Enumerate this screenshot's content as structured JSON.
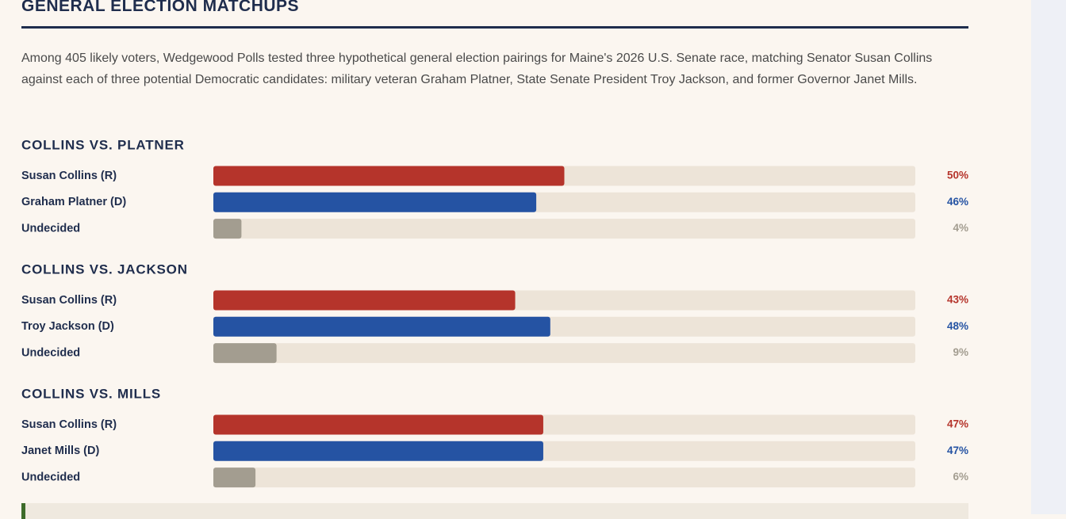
{
  "header": {
    "title": "GENERAL ELECTION MATCHUPS",
    "description": "Among 405 likely voters, Wedgewood Polls tested three hypothetical general election pairings for Maine's 2026 U.S. Senate race, matching Senator Susan Collins against each of three potential Democratic candidates: military veteran Graham Platner, State Senate President Troy Jackson, and former Governor Janet Mills."
  },
  "chart_data": [
    {
      "type": "bar",
      "orientation": "horizontal",
      "title": "COLLINS VS. PLATNER",
      "categories": [
        "Susan Collins (R)",
        "Graham Platner (D)",
        "Undecided"
      ],
      "values": [
        50,
        46,
        4
      ],
      "value_labels": [
        "50%",
        "46%",
        "4%"
      ],
      "colors": [
        "#b5342b",
        "#2553a3",
        "#a39d90"
      ],
      "xlim": [
        0,
        100
      ]
    },
    {
      "type": "bar",
      "orientation": "horizontal",
      "title": "COLLINS VS. JACKSON",
      "categories": [
        "Susan Collins (R)",
        "Troy Jackson (D)",
        "Undecided"
      ],
      "values": [
        43,
        48,
        9
      ],
      "value_labels": [
        "43%",
        "48%",
        "9%"
      ],
      "colors": [
        "#b5342b",
        "#2553a3",
        "#a39d90"
      ],
      "xlim": [
        0,
        100
      ]
    },
    {
      "type": "bar",
      "orientation": "horizontal",
      "title": "COLLINS VS. MILLS",
      "categories": [
        "Susan Collins (R)",
        "Janet Mills (D)",
        "Undecided"
      ],
      "values": [
        47,
        47,
        6
      ],
      "value_labels": [
        "47%",
        "47%",
        "6%"
      ],
      "colors": [
        "#b5342b",
        "#2553a3",
        "#a39d90"
      ],
      "xlim": [
        0,
        100
      ]
    }
  ]
}
